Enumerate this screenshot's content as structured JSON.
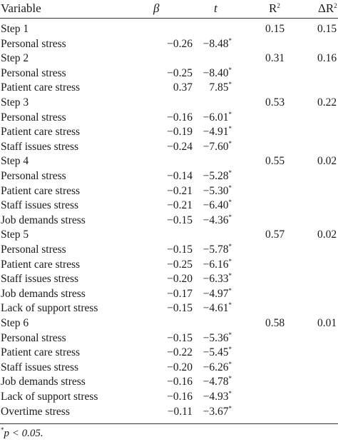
{
  "header": {
    "variable": "Variable",
    "beta": "β",
    "t": "t",
    "r2": "R",
    "r2_sup": "2",
    "dr2": "ΔR",
    "dr2_sup": "2"
  },
  "rows": [
    {
      "variable": "Step 1",
      "beta": "",
      "t": "",
      "sig": "",
      "r2": "0.15",
      "dr2": "0.15"
    },
    {
      "variable": "Personal stress",
      "beta": "−0.26",
      "t": "−8.48",
      "sig": "*",
      "r2": "",
      "dr2": ""
    },
    {
      "variable": "Step 2",
      "beta": "",
      "t": "",
      "sig": "",
      "r2": "0.31",
      "dr2": "0.16"
    },
    {
      "variable": "Personal stress",
      "beta": "−0.25",
      "t": "−8.40",
      "sig": "*",
      "r2": "",
      "dr2": ""
    },
    {
      "variable": "Patient care stress",
      "beta": "0.37",
      "t": "7.85",
      "sig": "*",
      "r2": "",
      "dr2": ""
    },
    {
      "variable": "Step 3",
      "beta": "",
      "t": "",
      "sig": "",
      "r2": "0.53",
      "dr2": "0.22"
    },
    {
      "variable": "Personal stress",
      "beta": "−0.16",
      "t": "−6.01",
      "sig": "*",
      "r2": "",
      "dr2": ""
    },
    {
      "variable": "Patient care stress",
      "beta": "−0.19",
      "t": "−4.91",
      "sig": "*",
      "r2": "",
      "dr2": ""
    },
    {
      "variable": "Staff issues stress",
      "beta": "−0.24",
      "t": "−7.60",
      "sig": "*",
      "r2": "",
      "dr2": ""
    },
    {
      "variable": "Step 4",
      "beta": "",
      "t": "",
      "sig": "",
      "r2": "0.55",
      "dr2": "0.02"
    },
    {
      "variable": "Personal stress",
      "beta": "−0.14",
      "t": "−5.28",
      "sig": "*",
      "r2": "",
      "dr2": ""
    },
    {
      "variable": "Patient care stress",
      "beta": "−0.21",
      "t": "−5.30",
      "sig": "*",
      "r2": "",
      "dr2": ""
    },
    {
      "variable": "Staff issues stress",
      "beta": "−0.21",
      "t": "−6.40",
      "sig": "*",
      "r2": "",
      "dr2": ""
    },
    {
      "variable": "Job demands stress",
      "beta": "−0.15",
      "t": "−4.36",
      "sig": "*",
      "r2": "",
      "dr2": ""
    },
    {
      "variable": "Step 5",
      "beta": "",
      "t": "",
      "sig": "",
      "r2": "0.57",
      "dr2": "0.02"
    },
    {
      "variable": "Personal stress",
      "beta": "−0.15",
      "t": "−5.78",
      "sig": "*",
      "r2": "",
      "dr2": ""
    },
    {
      "variable": "Patient care stress",
      "beta": "−0.25",
      "t": "−6.16",
      "sig": "*",
      "r2": "",
      "dr2": ""
    },
    {
      "variable": "Staff issues stress",
      "beta": "−0.20",
      "t": "−6.33",
      "sig": "*",
      "r2": "",
      "dr2": ""
    },
    {
      "variable": "Job demands stress",
      "beta": "−0.17",
      "t": "−4.97",
      "sig": "*",
      "r2": "",
      "dr2": ""
    },
    {
      "variable": "Lack of support stress",
      "beta": "−0.15",
      "t": "−4.61",
      "sig": "*",
      "r2": "",
      "dr2": ""
    },
    {
      "variable": "Step 6",
      "beta": "",
      "t": "",
      "sig": "",
      "r2": "0.58",
      "dr2": "0.01"
    },
    {
      "variable": "Personal stress",
      "beta": "−0.15",
      "t": "−5.36",
      "sig": "*",
      "r2": "",
      "dr2": ""
    },
    {
      "variable": "Patient care stress",
      "beta": "−0.22",
      "t": "−5.45",
      "sig": "*",
      "r2": "",
      "dr2": ""
    },
    {
      "variable": "Staff issues stress",
      "beta": "−0.20",
      "t": "−6.26",
      "sig": "*",
      "r2": "",
      "dr2": ""
    },
    {
      "variable": "Job demands stress",
      "beta": "−0.16",
      "t": "−4.78",
      "sig": "*",
      "r2": "",
      "dr2": ""
    },
    {
      "variable": "Lack of support stress",
      "beta": "−0.16",
      "t": "−4.93",
      "sig": "*",
      "r2": "",
      "dr2": ""
    },
    {
      "variable": "Overtime stress",
      "beta": "−0.11",
      "t": "−3.67",
      "sig": "*",
      "r2": "",
      "dr2": ""
    }
  ],
  "note": {
    "marker": "*",
    "text": "p < 0.05."
  }
}
